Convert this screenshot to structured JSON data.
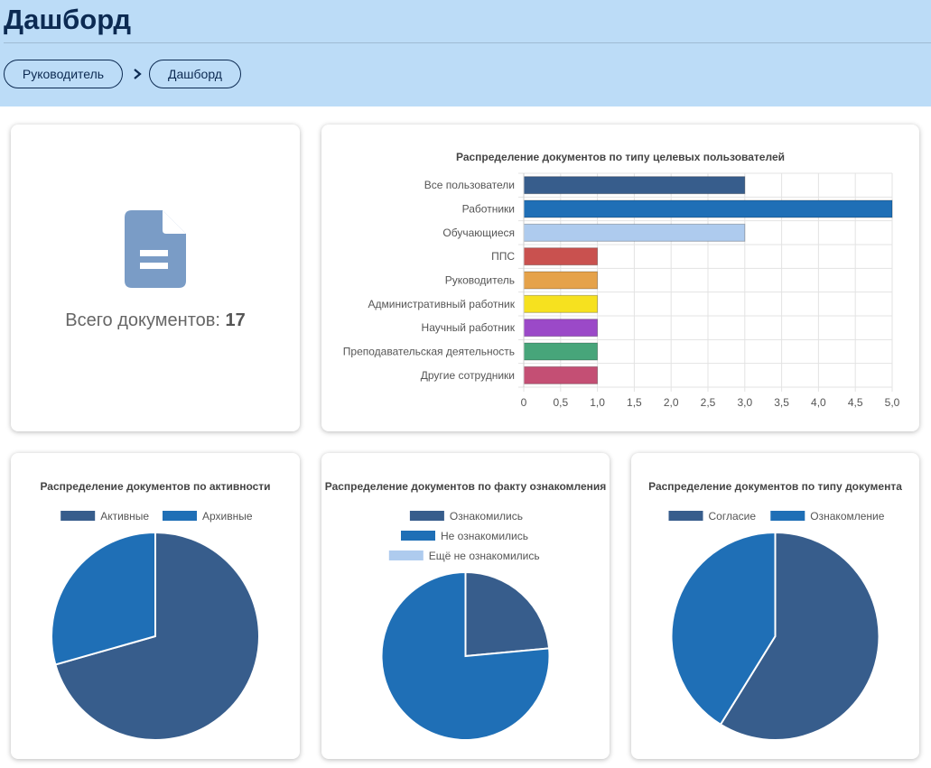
{
  "header": {
    "title": "Дашборд",
    "breadcrumbs": [
      "Руководитель",
      "Дашборд"
    ]
  },
  "summary": {
    "label": "Всего документов:",
    "count": "17",
    "icon": "document-icon",
    "icon_color": "#7a9cc6"
  },
  "chart_data": [
    {
      "type": "bar",
      "orientation": "horizontal",
      "title": "Распределение документов по типу целевых пользователей",
      "categories": [
        "Все пользователи",
        "Работники",
        "Обучающиеся",
        "ППС",
        "Руководитель",
        "Административный работник",
        "Научный работник",
        "Преподавательская деятельность",
        "Другие сотрудники"
      ],
      "values": [
        3,
        5,
        3,
        1,
        1,
        1,
        1,
        1,
        1
      ],
      "colors": [
        "#375d8c",
        "#1f6fb6",
        "#aecbee",
        "#c9514f",
        "#e5a24a",
        "#f6e11f",
        "#9b49c8",
        "#47a57a",
        "#c44f74"
      ],
      "xlim": [
        0,
        5
      ],
      "xticks": [
        "0",
        "0,5",
        "1,0",
        "1,5",
        "2,0",
        "2,5",
        "3,0",
        "3,5",
        "4,0",
        "4,5",
        "5,0"
      ],
      "grid": true
    },
    {
      "type": "pie",
      "title": "Распределение документов по активности",
      "categories": [
        "Активные",
        "Архивные"
      ],
      "values": [
        12,
        5
      ],
      "colors": [
        "#375d8c",
        "#1f6fb6"
      ],
      "legend": "top"
    },
    {
      "type": "pie",
      "title": "Распределение документов по факту ознакомления",
      "categories": [
        "Ознакомились",
        "Не ознакомились",
        "Ещё не ознакомились"
      ],
      "values": [
        4,
        13,
        0
      ],
      "colors": [
        "#375d8c",
        "#1f6fb6",
        "#aecbee"
      ],
      "legend": "top"
    },
    {
      "type": "pie",
      "title": "Распределение документов по типу документа",
      "categories": [
        "Согласие",
        "Ознакомление"
      ],
      "values": [
        10,
        7
      ],
      "colors": [
        "#375d8c",
        "#1f6fb6"
      ],
      "legend": "top"
    }
  ]
}
